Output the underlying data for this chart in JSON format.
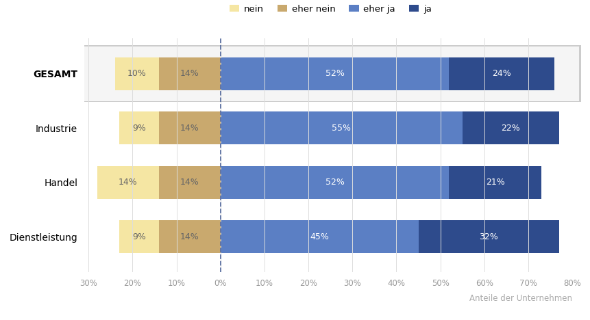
{
  "categories": [
    "Dienstleistung",
    "Handel",
    "Industrie",
    "GESAMT"
  ],
  "nein": [
    9,
    14,
    9,
    10
  ],
  "eher_nein": [
    14,
    14,
    14,
    14
  ],
  "eher_ja": [
    45,
    52,
    55,
    52
  ],
  "ja": [
    32,
    21,
    22,
    24
  ],
  "colors": {
    "nein": "#f5e6a3",
    "eher_nein": "#c9a96e",
    "eher_ja": "#5b7fc4",
    "ja": "#2e4b8c"
  },
  "legend_labels": [
    "nein",
    "eher nein",
    "eher ja",
    "ja"
  ],
  "xlim": [
    -30,
    80
  ],
  "xticks": [
    -30,
    -20,
    -10,
    0,
    10,
    20,
    30,
    40,
    50,
    60,
    70,
    80
  ],
  "xlabel": "Anteile der Unternehmen",
  "highlight_row": "GESAMT",
  "bar_height": 0.6,
  "fig_bg": "#ffffff",
  "text_color_light": "#ffffff",
  "text_color_dark": "#666666",
  "gesamt_card_color": "#f5f5f5",
  "dashed_line_color": "#5b6fa0",
  "grid_color": "#dddddd",
  "tick_color": "#999999",
  "xlabel_color": "#aaaaaa",
  "legend_fontsize": 9.5,
  "bar_label_fontsize": 9,
  "ytick_fontsize": 10,
  "xtick_fontsize": 8.5
}
